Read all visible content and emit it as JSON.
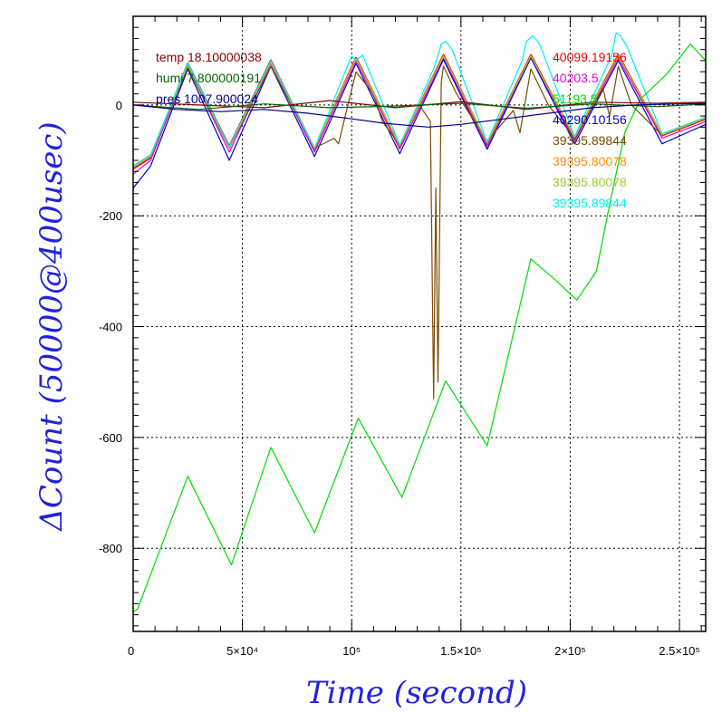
{
  "chart_data": {
    "type": "line",
    "xlabel": "Time (second)",
    "ylabel": "ΔCount (50000@400usec)",
    "xlim": [
      0,
      262000
    ],
    "ylim": [
      -950,
      160
    ],
    "grid": true,
    "xticks": [
      {
        "value": 0,
        "label": "0"
      },
      {
        "value": 50000,
        "label": "5×10⁴"
      },
      {
        "value": 100000,
        "label": "10⁵"
      },
      {
        "value": 150000,
        "label": "1.5×10⁵"
      },
      {
        "value": 200000,
        "label": "2×10⁵"
      },
      {
        "value": 250000,
        "label": "2.5×10⁵"
      }
    ],
    "yticks": [
      {
        "value": 0,
        "label": "0"
      },
      {
        "value": -200,
        "label": "-200"
      },
      {
        "value": -400,
        "label": "-400"
      },
      {
        "value": -600,
        "label": "-600"
      },
      {
        "value": -800,
        "label": "-800"
      }
    ],
    "annotations_left": [
      {
        "text": "temp 18.10000038",
        "color": "#8b0000"
      },
      {
        "text": "humi 7.800000191",
        "color": "#006400"
      },
      {
        "text": "pres 1007.900024",
        "color": "#00008b"
      }
    ],
    "legend_placement": "top-right",
    "series": [
      {
        "name": "40099.19156",
        "color": "#ee0000",
        "x": [
          0,
          8000,
          25000,
          44000,
          63000,
          83000,
          102000,
          122000,
          142000,
          162000,
          182000,
          202000,
          222000,
          242000,
          262000
        ],
        "y": [
          -115,
          -95,
          75,
          -75,
          80,
          -80,
          85,
          -75,
          90,
          -70,
          90,
          -60,
          90,
          -55,
          -25
        ]
      },
      {
        "name": "40203.5",
        "color": "#ee00ee",
        "x": [
          0,
          8000,
          25000,
          44000,
          63000,
          83000,
          102000,
          122000,
          142000,
          162000,
          182000,
          202000,
          222000,
          242000,
          262000
        ],
        "y": [
          -125,
          -100,
          70,
          -85,
          75,
          -85,
          80,
          -80,
          85,
          -75,
          85,
          -65,
          85,
          -60,
          -30
        ]
      },
      {
        "name": "51193.5",
        "color": "#00dd00",
        "x": [
          0,
          2000,
          25000,
          45000,
          63000,
          83000,
          103000,
          123000,
          143000,
          162000,
          182000,
          193000,
          203000,
          212000,
          218000,
          225000,
          232000,
          244000,
          255000,
          262000
        ],
        "y": [
          -915,
          -910,
          -670,
          -830,
          -618,
          -772,
          -565,
          -708,
          -498,
          -615,
          -278,
          -315,
          -352,
          -300,
          -180,
          -50,
          10,
          55,
          110,
          80
        ]
      },
      {
        "name": "40290.10156",
        "color": "#0000cc",
        "x": [
          0,
          8000,
          25000,
          44000,
          63000,
          83000,
          102000,
          122000,
          142000,
          162000,
          182000,
          202000,
          222000,
          242000,
          262000
        ],
        "y": [
          -150,
          -110,
          65,
          -100,
          70,
          -93,
          75,
          -88,
          82,
          -80,
          85,
          -70,
          80,
          -70,
          -35
        ]
      },
      {
        "name": "39395.89844",
        "color": "#7a4a00",
        "x": [
          0,
          8000,
          25000,
          44000,
          63000,
          83000,
          92000,
          94000,
          102000,
          110000,
          114000,
          122000,
          131000,
          136000,
          137500,
          138500,
          139500,
          141000,
          142000,
          148000,
          162000,
          174000,
          177000,
          182000,
          190000,
          202000,
          215000,
          218000,
          222000,
          228000,
          242000,
          262000
        ],
        "y": [
          -110,
          -90,
          68,
          -78,
          70,
          -78,
          -60,
          -70,
          60,
          20,
          -30,
          -72,
          0,
          -30,
          -530,
          -150,
          -500,
          40,
          70,
          20,
          -65,
          -10,
          -50,
          65,
          0,
          -60,
          30,
          -20,
          70,
          0,
          -55,
          -25
        ]
      },
      {
        "name": "39395.80078",
        "color": "#ff8c00",
        "x": [
          0,
          8000,
          25000,
          44000,
          63000,
          83000,
          102000,
          122000,
          142000,
          162000,
          182000,
          202000,
          222000,
          242000,
          262000
        ],
        "y": [
          -112,
          -92,
          72,
          -77,
          77,
          -79,
          83,
          -74,
          89,
          -69,
          89,
          -59,
          89,
          -54,
          -24
        ]
      },
      {
        "name": "39395.80078",
        "color": "#9acd32",
        "x": [
          0,
          8000,
          25000,
          44000,
          63000,
          83000,
          102000,
          122000,
          142000,
          162000,
          182000,
          202000,
          222000,
          242000,
          262000
        ],
        "y": [
          -113,
          -93,
          73,
          -76,
          78,
          -78,
          84,
          -73,
          88,
          -68,
          88,
          -58,
          88,
          -53,
          -23
        ]
      },
      {
        "name": "39395.89844",
        "color": "#00eeee",
        "x": [
          0,
          8000,
          25000,
          44000,
          63000,
          83000,
          97000,
          100000,
          102000,
          105000,
          122000,
          138000,
          141000,
          143000,
          146000,
          162000,
          178000,
          180000,
          183000,
          186000,
          202000,
          219000,
          221000,
          223000,
          226000,
          242000,
          262000
        ],
        "y": [
          -110,
          -90,
          76,
          -75,
          80,
          -78,
          60,
          88,
          80,
          90,
          -72,
          70,
          110,
          115,
          100,
          -67,
          80,
          115,
          125,
          110,
          -57,
          90,
          130,
          125,
          105,
          -52,
          -22
        ]
      },
      {
        "color": "#8b0000",
        "x": [
          0,
          30000,
          60000,
          90000,
          120000,
          150000,
          180000,
          210000,
          240000,
          262000
        ],
        "y": [
          5,
          0,
          -5,
          8,
          -5,
          6,
          -8,
          5,
          3,
          5
        ]
      },
      {
        "color": "#006400",
        "x": [
          0,
          30000,
          60000,
          90000,
          120000,
          150000,
          180000,
          210000,
          240000,
          262000
        ],
        "y": [
          0,
          -8,
          2,
          -5,
          -2,
          3,
          -6,
          2,
          -3,
          2
        ]
      },
      {
        "color": "#00008b",
        "x": [
          0,
          20000,
          40000,
          60000,
          80000,
          100000,
          115000,
          135000,
          150000,
          170000,
          190000,
          210000,
          230000,
          250000,
          262000
        ],
        "y": [
          0,
          -8,
          -12,
          -8,
          -15,
          -25,
          -33,
          -40,
          -35,
          -25,
          -15,
          -5,
          0,
          2,
          3
        ]
      }
    ]
  }
}
